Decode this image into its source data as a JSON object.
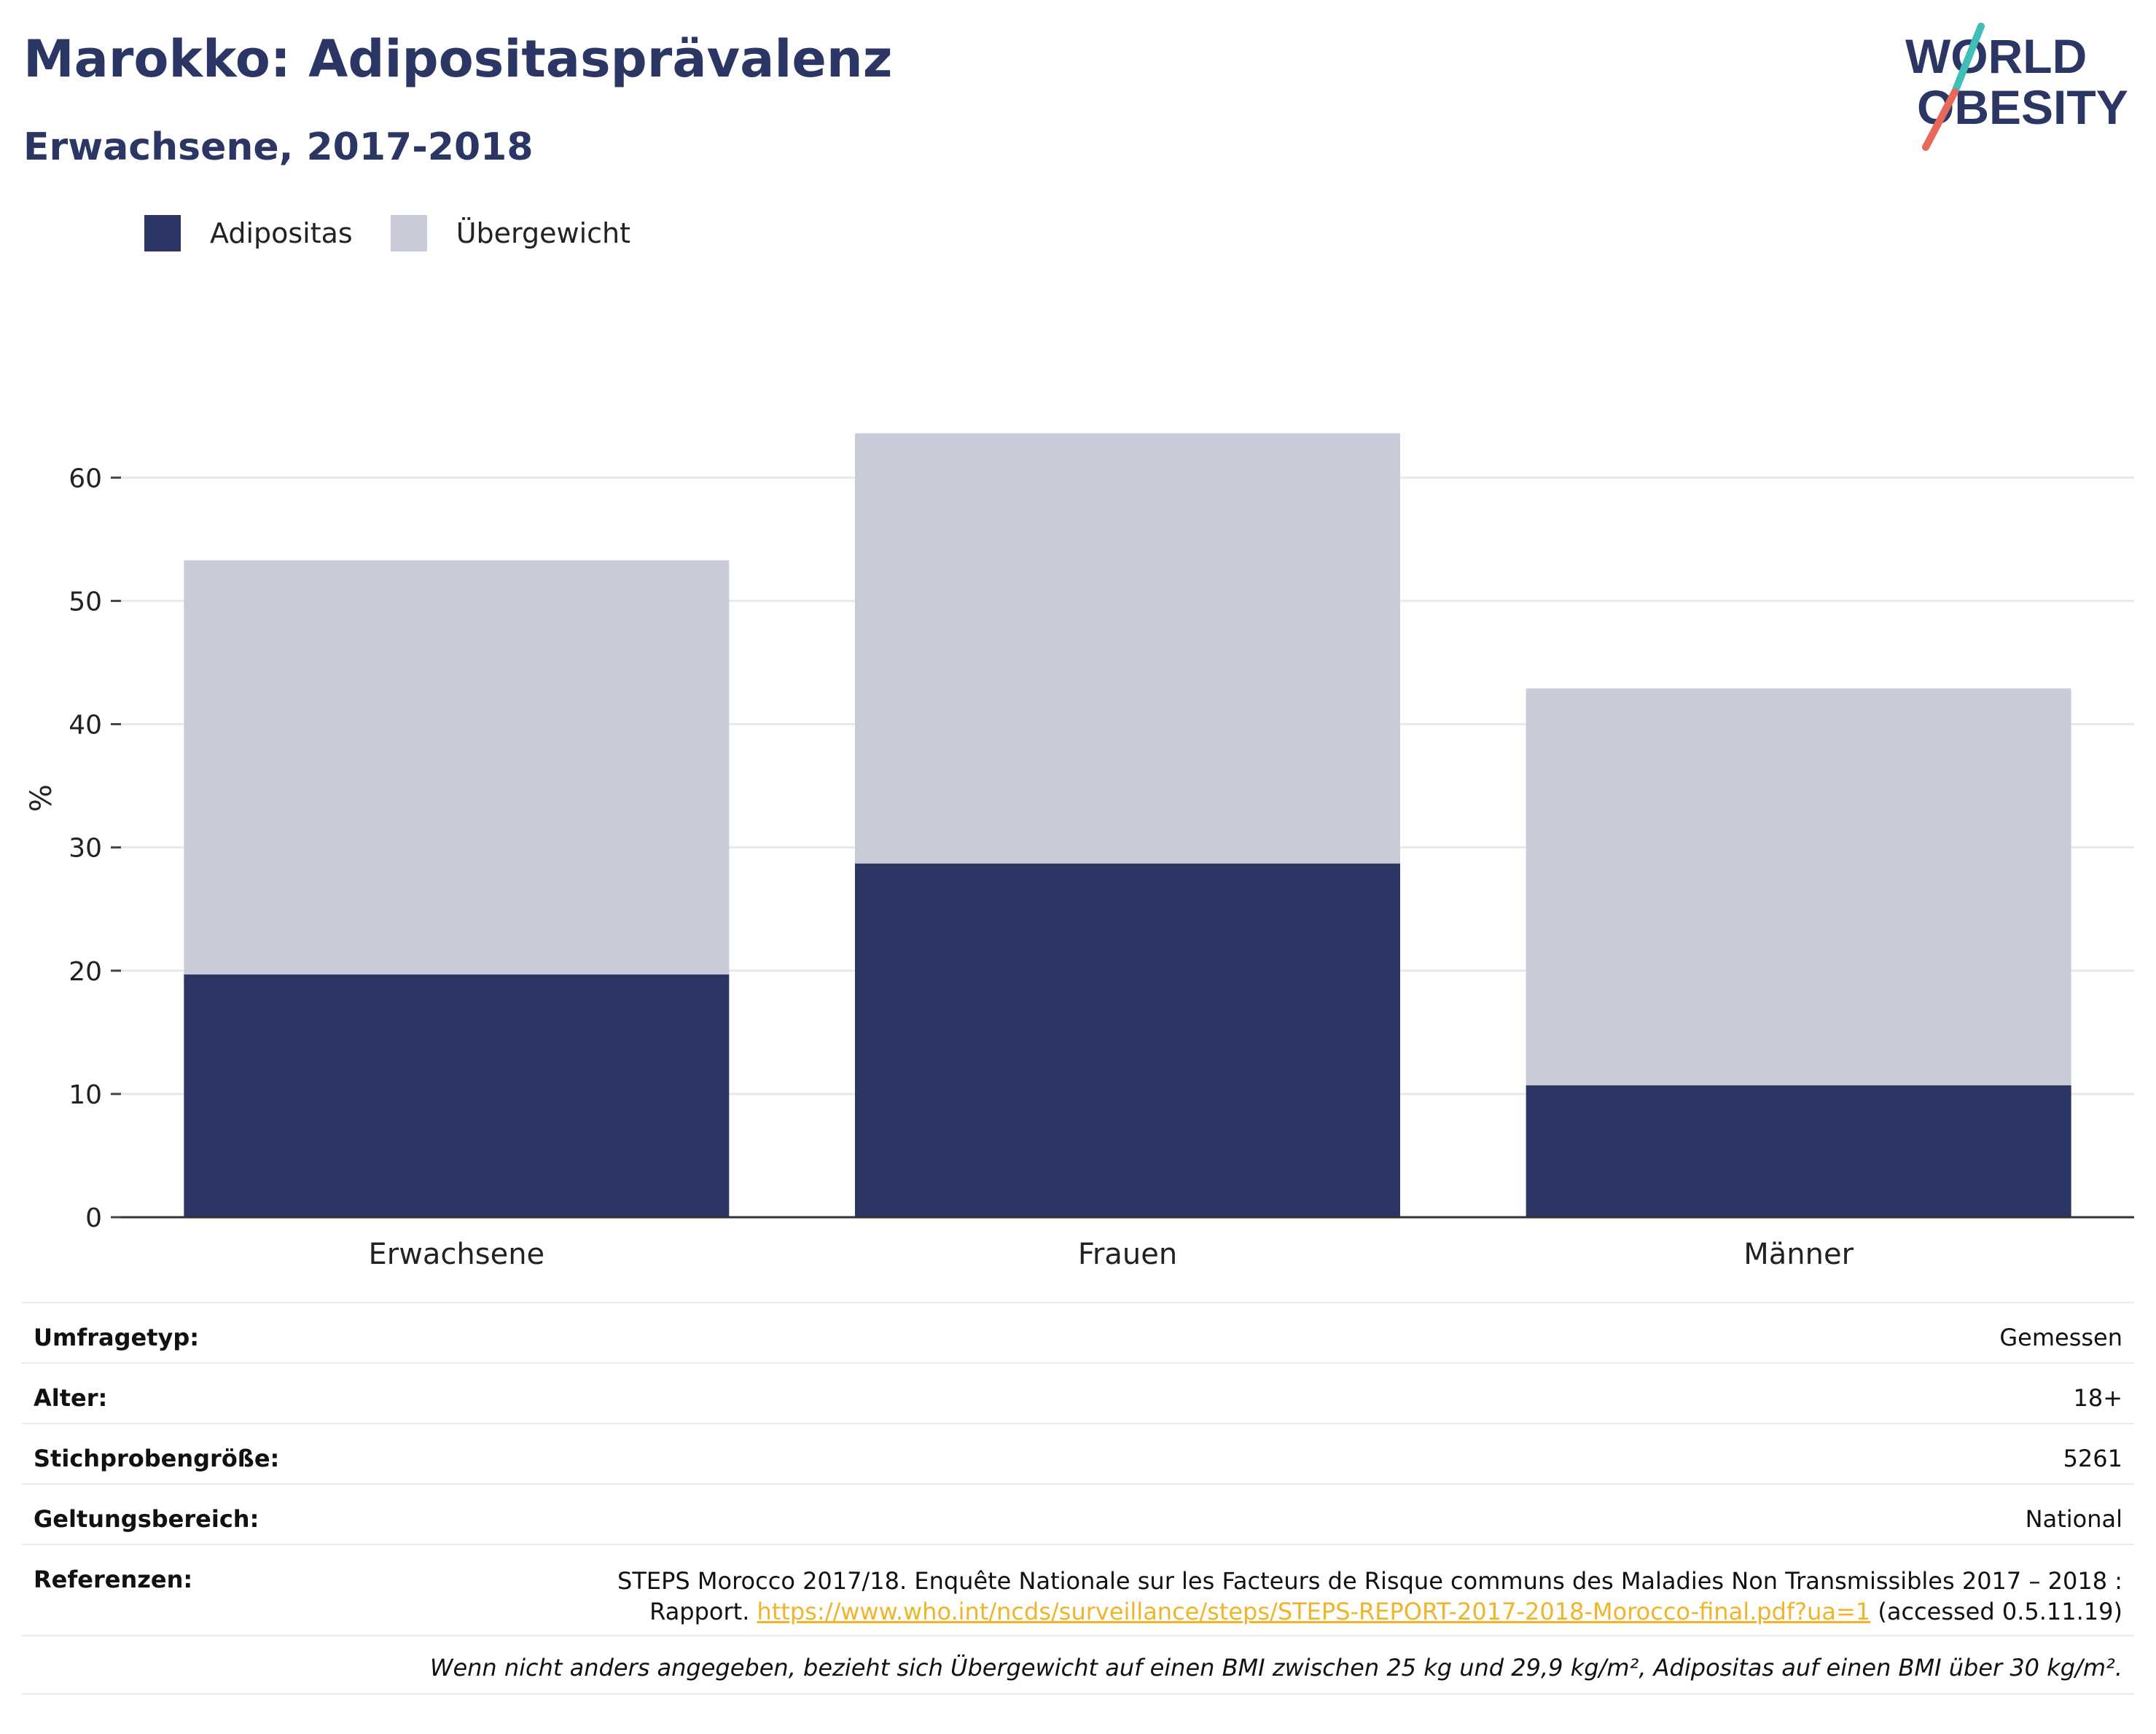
{
  "header": {
    "title": "Marokko: Adipositasprävalenz",
    "subtitle": "Erwachsene, 2017-2018",
    "logo_line1": "WORLD",
    "logo_line2": "OBESITY"
  },
  "legend": {
    "items": [
      {
        "label": "Adipositas",
        "color": "#2b3664"
      },
      {
        "label": "Übergewicht",
        "color": "#c9ccd8"
      }
    ]
  },
  "chart_data": {
    "type": "bar",
    "stacked": true,
    "categories": [
      "Erwachsene",
      "Frauen",
      "Männer"
    ],
    "series": [
      {
        "name": "Adipositas",
        "values": [
          19.7,
          28.7,
          10.7
        ],
        "color": "#2b3664"
      },
      {
        "name": "Übergewicht",
        "values": [
          33.6,
          34.9,
          32.2
        ],
        "color": "#c9ccd8"
      }
    ],
    "ylabel": "%",
    "ylim": [
      0,
      68
    ],
    "yticks": [
      0,
      10,
      20,
      30,
      40,
      50,
      60
    ],
    "grid": true
  },
  "info": {
    "rows": [
      {
        "label": "Umfragetyp:",
        "value": "Gemessen"
      },
      {
        "label": "Alter:",
        "value": "18+"
      },
      {
        "label": "Stichprobengröße:",
        "value": "5261"
      },
      {
        "label": "Geltungsbereich:",
        "value": "National"
      }
    ],
    "references": {
      "label": "Referenzen:",
      "text_line1": "STEPS Morocco 2017/18. Enquête Nationale sur les Facteurs de Risque communs des Maladies Non Transmissibles 2017 – 2018 :",
      "text_before_link": "Rapport. ",
      "link": "https://www.who.int/ncds/surveillance/steps/STEPS-REPORT-2017-2018-Morocco-final.pdf?ua=1",
      "text_after_link": " (accessed 0.5.11.19)"
    },
    "note": "Wenn nicht anders angegeben, bezieht sich Übergewicht auf einen BMI zwischen 25 kg und 29,9 kg/m², Adipositas auf einen BMI über 30 kg/m²."
  }
}
